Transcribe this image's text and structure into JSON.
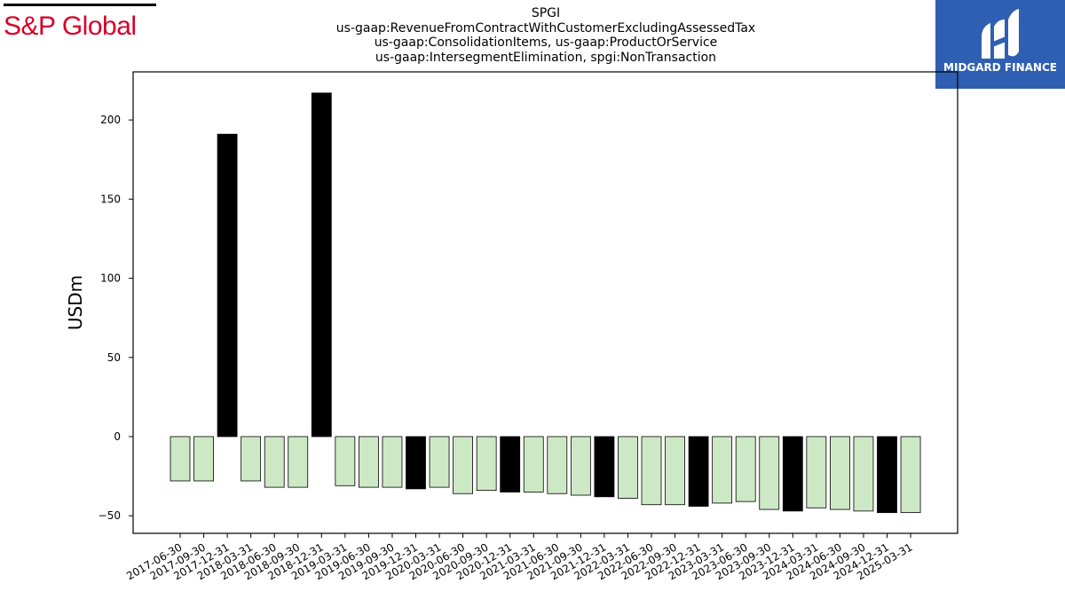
{
  "branding": {
    "left_logo_text": "S&P Global",
    "left_logo_color": "#d6002a",
    "right_logo_text": "MIDGARD FINANCE",
    "right_logo_bg": "#2f5fb3"
  },
  "chart_data": {
    "type": "bar",
    "title_lines": [
      "SPGI",
      "us-gaap:RevenueFromContractWithCustomerExcludingAssessedTax",
      "us-gaap:ConsolidationItems, us-gaap:ProductOrService",
      "us-gaap:IntersegmentElimination, spgi:NonTransaction"
    ],
    "ylabel": "USDm",
    "xlabel": "",
    "ylim": [
      -60,
      230
    ],
    "yticks": [
      -50,
      0,
      50,
      100,
      150,
      200
    ],
    "grid": false,
    "legend": "none",
    "colors": {
      "quarterly": "#cde8c5",
      "annual": "#000000",
      "edge": "#000000"
    },
    "categories": [
      "2017-06-30",
      "2017-09-30",
      "2017-12-31",
      "2018-03-31",
      "2018-06-30",
      "2018-09-30",
      "2018-12-31",
      "2019-03-31",
      "2019-06-30",
      "2019-09-30",
      "2019-12-31",
      "2020-03-31",
      "2020-06-30",
      "2020-09-30",
      "2020-12-31",
      "2021-03-31",
      "2021-06-30",
      "2021-09-30",
      "2021-12-31",
      "2022-03-31",
      "2022-06-30",
      "2022-09-30",
      "2022-12-31",
      "2023-03-31",
      "2023-06-30",
      "2023-09-30",
      "2023-12-31",
      "2024-03-31",
      "2024-06-30",
      "2024-09-30",
      "2024-12-31",
      "2025-03-31"
    ],
    "values": [
      -28,
      -28,
      191,
      -28,
      -32,
      -32,
      217,
      -31,
      -32,
      -32,
      -33,
      -32,
      -36,
      -34,
      -35,
      -35,
      -36,
      -37,
      -38,
      -39,
      -43,
      -43,
      -44,
      -42,
      -41,
      -46,
      -47,
      -45,
      -46,
      -47,
      -48,
      -48
    ],
    "annual_flags": [
      false,
      false,
      true,
      false,
      false,
      false,
      true,
      false,
      false,
      false,
      true,
      false,
      false,
      false,
      true,
      false,
      false,
      false,
      true,
      false,
      false,
      false,
      true,
      false,
      false,
      false,
      true,
      false,
      false,
      false,
      true,
      false
    ]
  }
}
